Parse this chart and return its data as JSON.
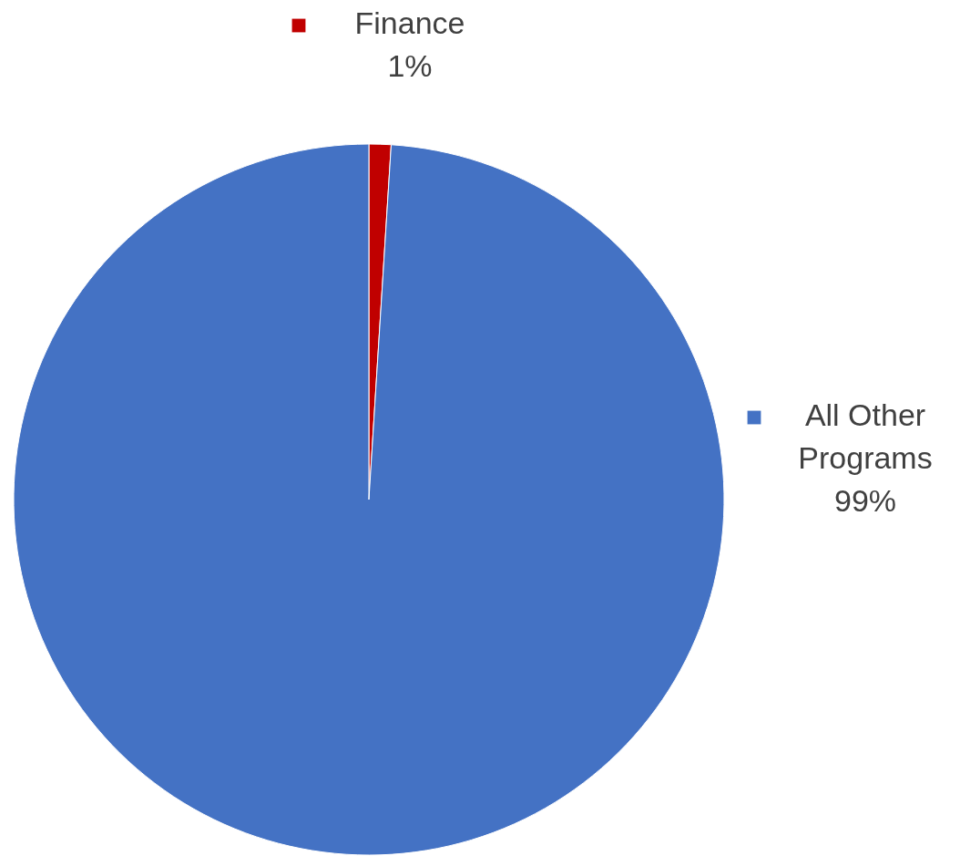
{
  "chart_data": {
    "type": "pie",
    "categories": [
      "Finance",
      "All Other Programs"
    ],
    "values": [
      1,
      99
    ],
    "colors": [
      "#c00000",
      "#4472c4"
    ],
    "value_labels": [
      "1%",
      "99%"
    ],
    "legend": "top right"
  }
}
